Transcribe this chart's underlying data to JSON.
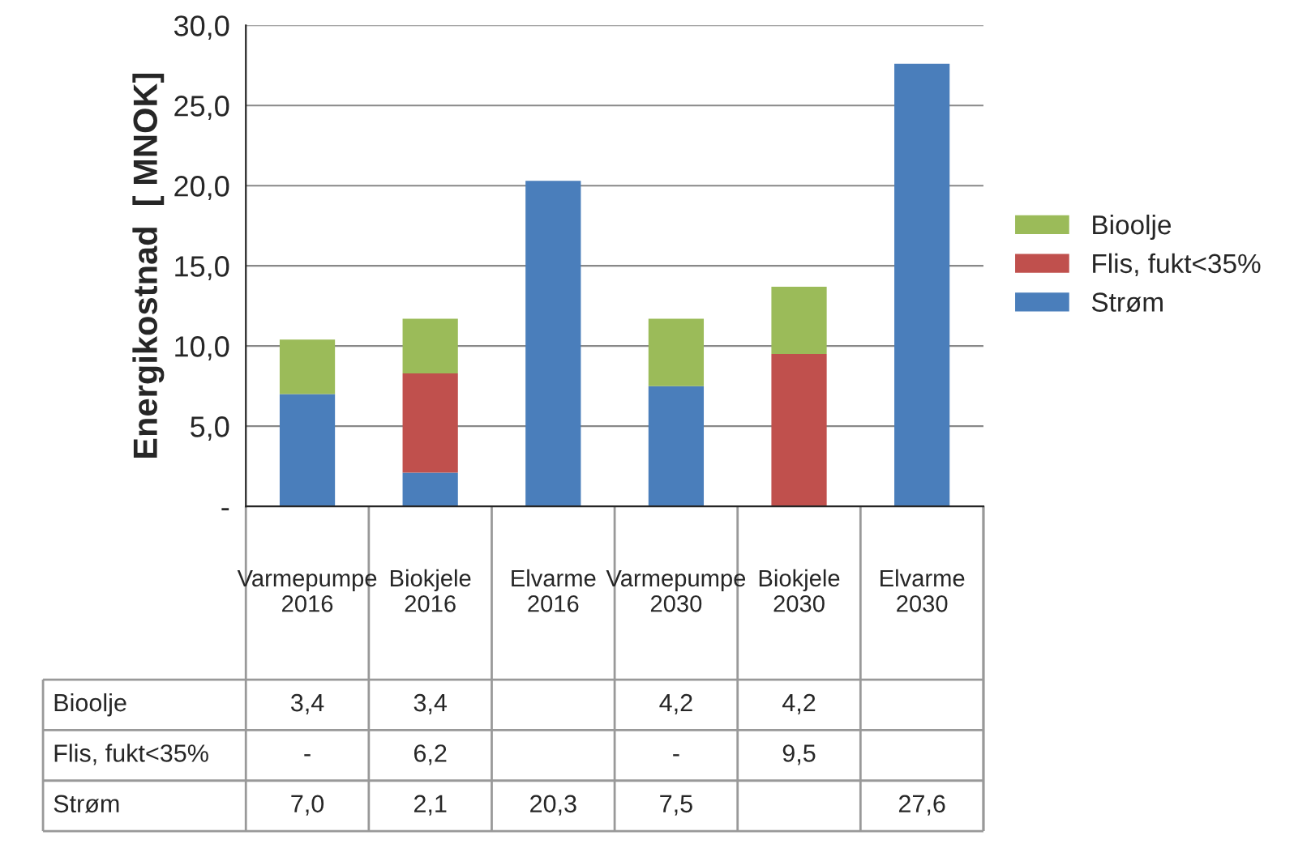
{
  "chart_data": {
    "type": "bar",
    "stacked": true,
    "ylabel": "Energikostnad  [ MNOK]",
    "categories": [
      "Varmepumpe 2016",
      "Biokjele 2016",
      "Elvarme 2016",
      "Varmepumpe 2030",
      "Biokjele 2030",
      "Elvarme 2030"
    ],
    "series": [
      {
        "name": "Strøm",
        "color": "#4a7ebb",
        "values": [
          7.0,
          2.1,
          20.3,
          7.5,
          null,
          27.6
        ],
        "value_labels": [
          "7,0",
          "2,1",
          "20,3",
          "7,5",
          null,
          "27,6"
        ]
      },
      {
        "name": "Flis, fukt<35%",
        "color": "#c0504d",
        "values": [
          0,
          6.2,
          null,
          0,
          9.5,
          null
        ],
        "value_labels": [
          "-",
          "6,2",
          null,
          "-",
          "9,5",
          null
        ]
      },
      {
        "name": "Bioolje",
        "color": "#9bbb59",
        "values": [
          3.4,
          3.4,
          null,
          4.2,
          4.2,
          null
        ],
        "value_labels": [
          "3,4",
          "3,4",
          null,
          "4,2",
          "4,2",
          null
        ]
      }
    ],
    "ylim": [
      0,
      30
    ],
    "yticks": [
      {
        "value": 0,
        "label": "-"
      },
      {
        "value": 5,
        "label": "5,0"
      },
      {
        "value": 10,
        "label": "10,0"
      },
      {
        "value": 15,
        "label": "15,0"
      },
      {
        "value": 20,
        "label": "20,0"
      },
      {
        "value": 25,
        "label": "25,0"
      },
      {
        "value": 30,
        "label": "30,0"
      }
    ],
    "grid": "y",
    "legend": "right"
  }
}
